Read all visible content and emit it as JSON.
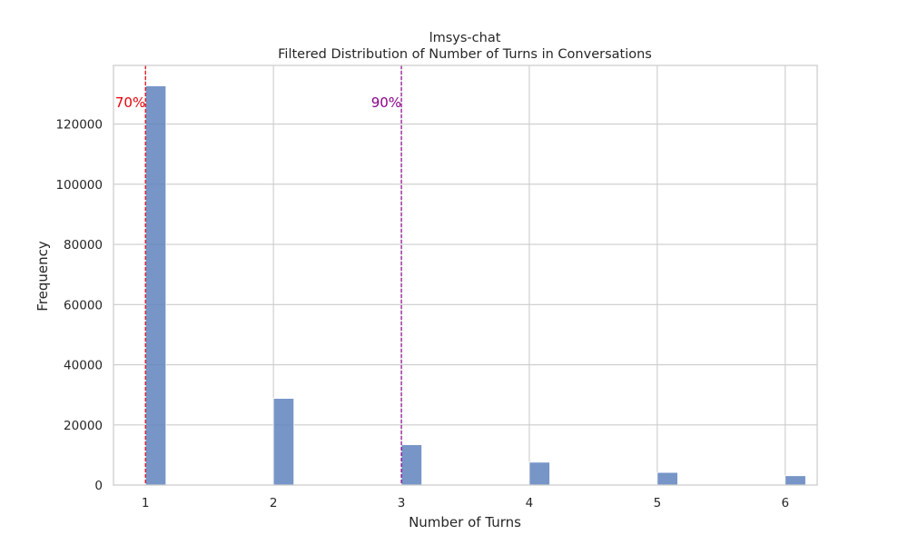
{
  "chart_data": {
    "type": "bar",
    "title": "lmsys-chat",
    "subtitle": "Filtered Distribution of Number of Turns in Conversations",
    "xlabel": "Number of Turns",
    "ylabel": "Frequency",
    "xlim": [
      0.75,
      6.25
    ],
    "ylim": [
      0,
      139500
    ],
    "xticks": [
      1,
      2,
      3,
      4,
      5,
      6
    ],
    "yticks": [
      0,
      20000,
      40000,
      60000,
      80000,
      100000,
      120000
    ],
    "bar_width": 0.16,
    "bars": [
      {
        "x": 1,
        "value": 132700
      },
      {
        "x": 2,
        "value": 28800
      },
      {
        "x": 3,
        "value": 13400
      },
      {
        "x": 4,
        "value": 7600
      },
      {
        "x": 5,
        "value": 4200
      },
      {
        "x": 6,
        "value": 3100
      }
    ],
    "bar_color": "#5f82bd",
    "grid": true,
    "vlines": [
      {
        "x": 1,
        "label": "70%",
        "color": "#e8000b"
      },
      {
        "x": 3,
        "label": "90%",
        "color": "#8b008b"
      }
    ]
  }
}
